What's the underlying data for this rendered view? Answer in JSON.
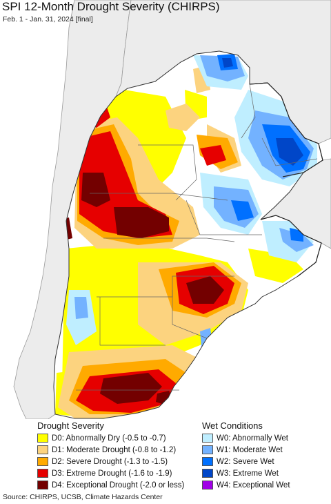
{
  "title": "SPI 12-Month Drought Severity (CHIRPS)",
  "subtitle": "Feb. 1 - Jan. 31, 2024 [final]",
  "legend": {
    "drought": {
      "heading": "Drought Severity",
      "items": [
        {
          "label": "D0: Abnormally Dry (-0.5 to -0.7)",
          "color": "#ffff00"
        },
        {
          "label": "D1: Moderate Drought (-0.8 to -1.2)",
          "color": "#fcd37f"
        },
        {
          "label": "D2: Severe Drought (-1.3 to -1.5)",
          "color": "#ffaa00"
        },
        {
          "label": "D3: Extreme Drought (-1.6 to -1.9)",
          "color": "#e60000"
        },
        {
          "label": "D4: Exceptional Drought (-2.0 or less)",
          "color": "#730000"
        }
      ]
    },
    "wet": {
      "heading": "Wet Conditions",
      "items": [
        {
          "label": "W0: Abnormally Wet",
          "color": "#bfeeff"
        },
        {
          "label": "W1: Moderate Wet",
          "color": "#73b2ff"
        },
        {
          "label": "W2: Severe Wet",
          "color": "#0070ff"
        },
        {
          "label": "W3: Extreme Wet",
          "color": "#0046c8"
        },
        {
          "label": "W4: Exceptional Wet",
          "color": "#a000e6"
        }
      ]
    }
  },
  "source": "Source: CHIRPS, UCSB, Climate Hazards Center",
  "colors": {
    "ocean": "#ffffff",
    "outside_land": "#ececec",
    "boundary": "#555555"
  }
}
